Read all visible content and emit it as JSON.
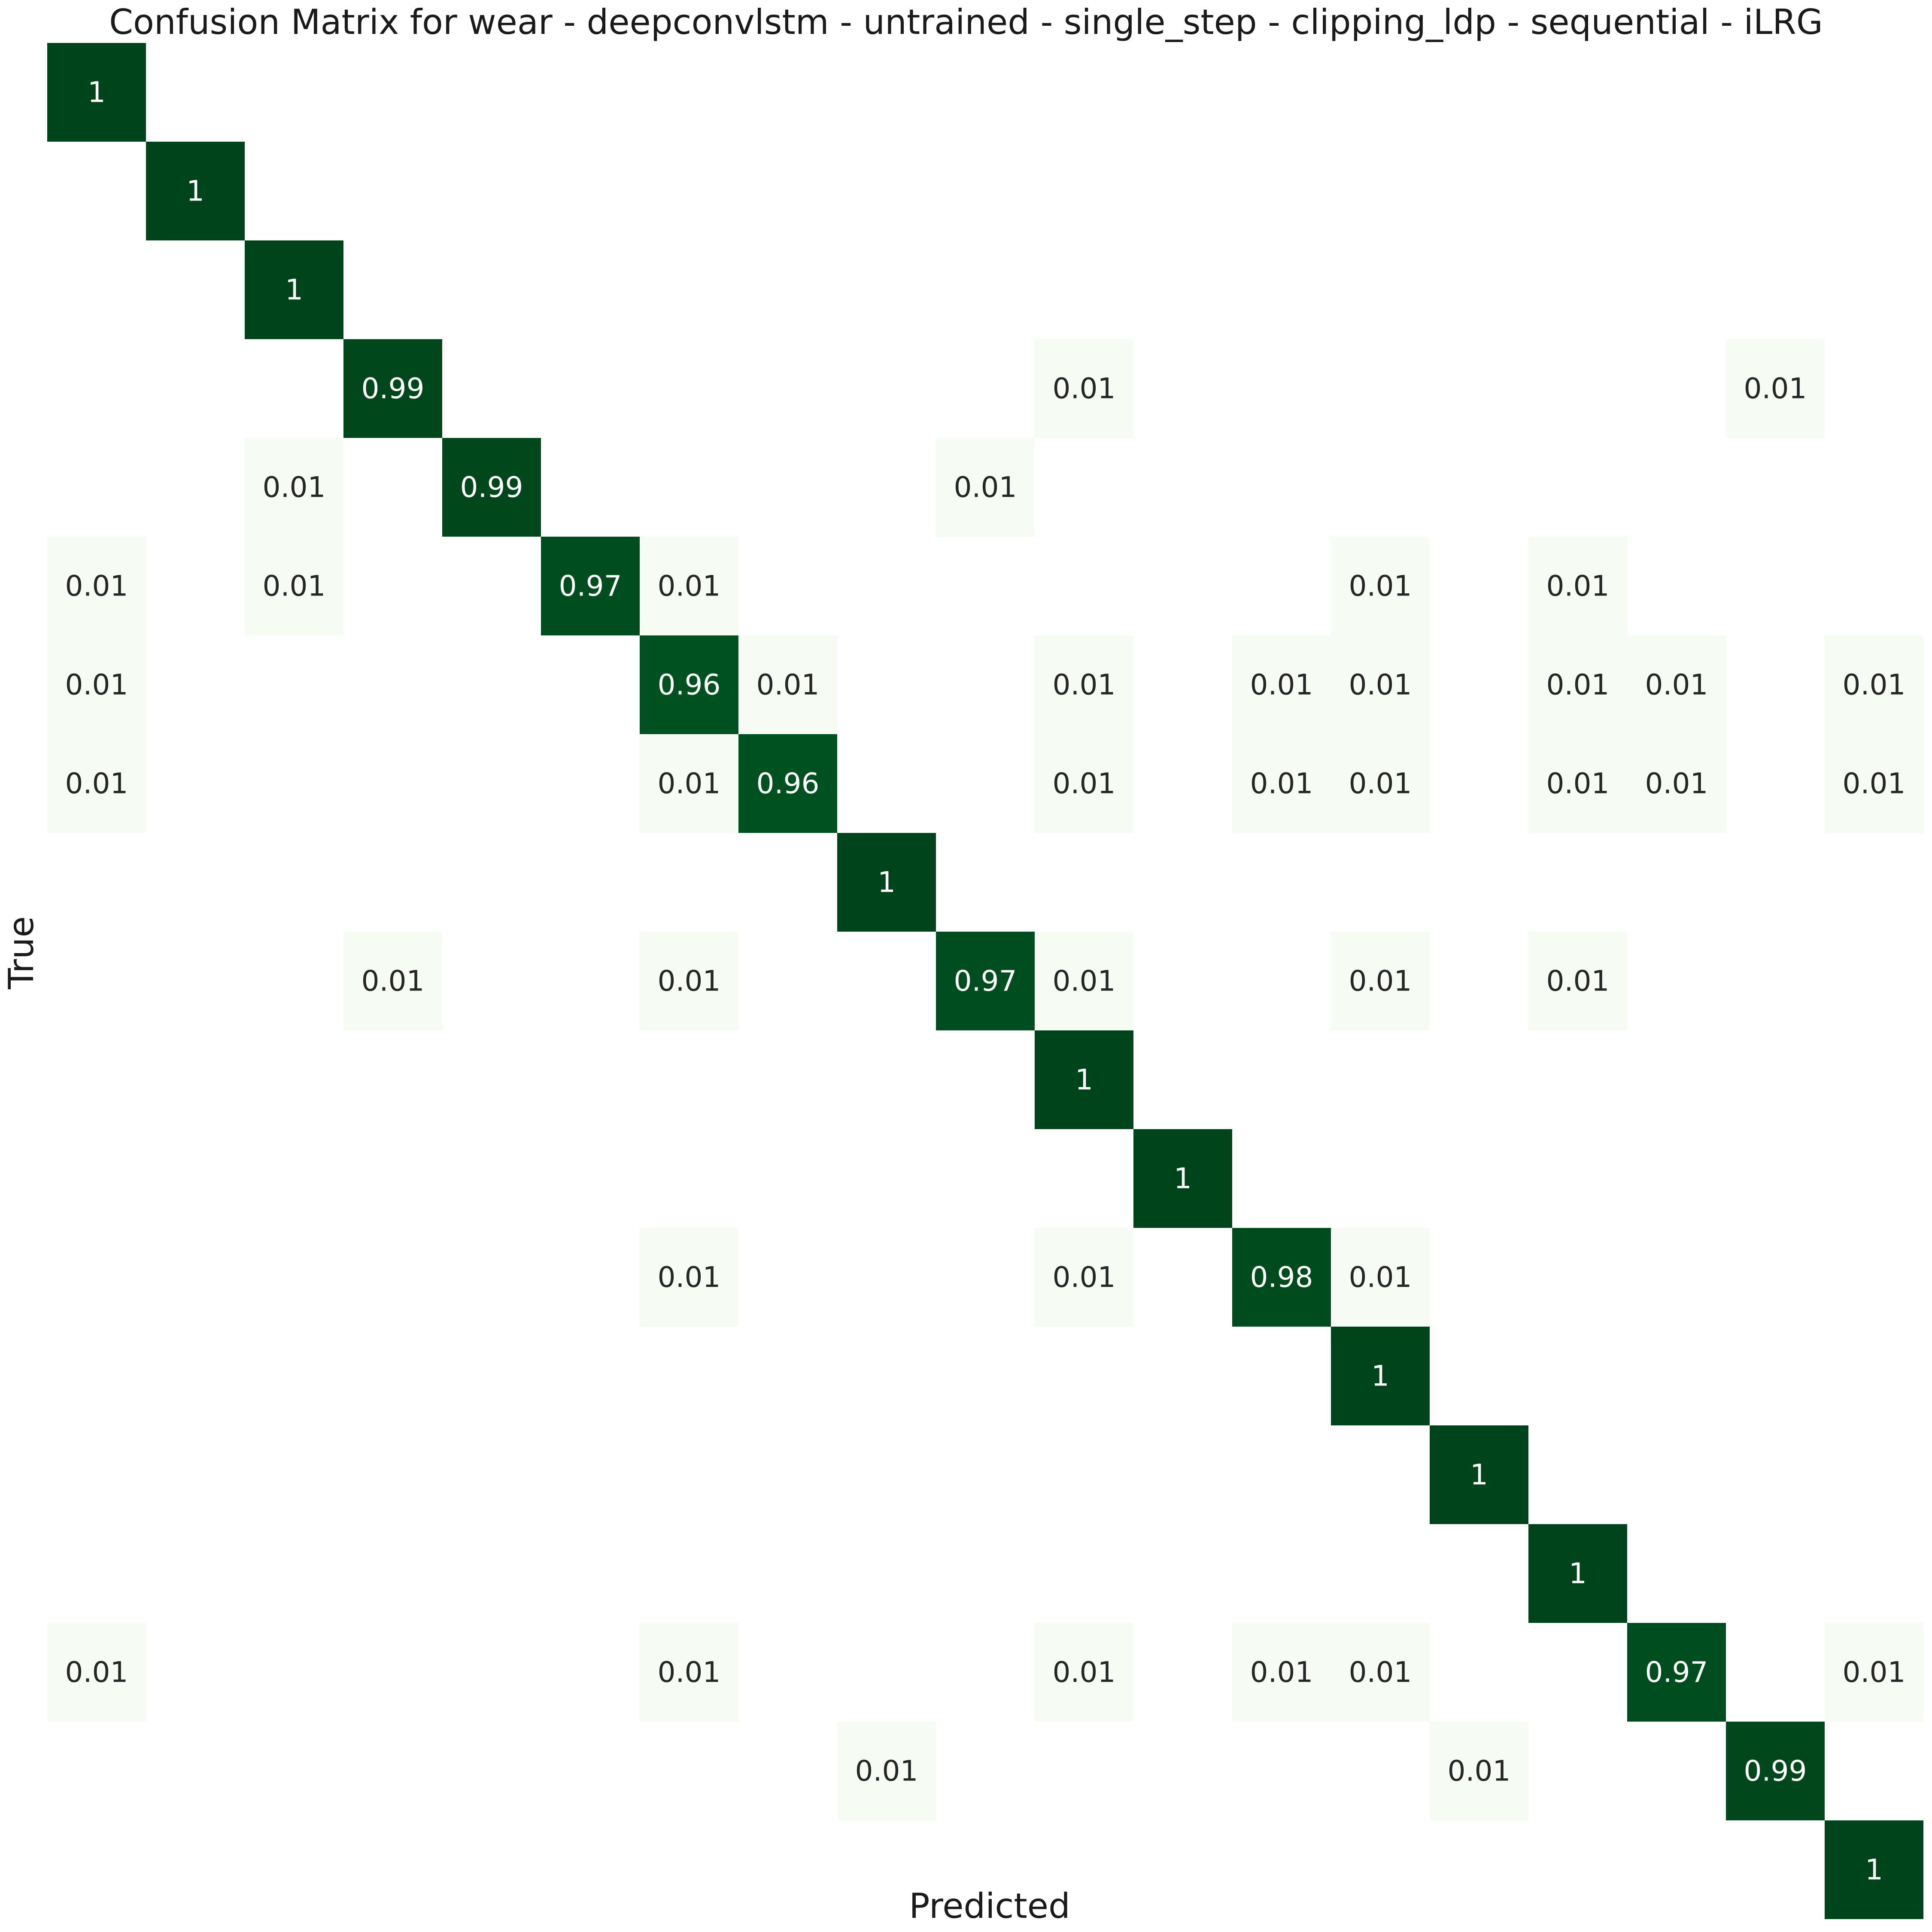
{
  "chart_data": {
    "type": "heatmap",
    "title": "Confusion Matrix for wear - deepconvlstm - untrained - single_step - clipping_ldp - sequential - iLRG",
    "xlabel": "Predicted",
    "ylabel": "True",
    "tick_labels_shown": false,
    "colorbar": false,
    "colormap": "Greens",
    "color_low": "#f7fcf5",
    "color_high": "#00441b",
    "value_range": [
      0,
      1
    ],
    "matrix": [
      [
        1,
        0,
        0,
        0,
        0,
        0,
        0,
        0,
        0,
        0,
        0,
        0,
        0,
        0,
        0,
        0,
        0,
        0,
        0
      ],
      [
        0,
        1,
        0,
        0,
        0,
        0,
        0,
        0,
        0,
        0,
        0,
        0,
        0,
        0,
        0,
        0,
        0,
        0,
        0
      ],
      [
        0,
        0,
        1,
        0,
        0,
        0,
        0,
        0,
        0,
        0,
        0,
        0,
        0,
        0,
        0,
        0,
        0,
        0,
        0
      ],
      [
        0,
        0,
        0,
        0.99,
        0,
        0,
        0,
        0,
        0,
        0,
        0.01,
        0,
        0,
        0,
        0,
        0,
        0,
        0.01,
        0
      ],
      [
        0,
        0,
        0.01,
        0,
        0.99,
        0,
        0,
        0,
        0,
        0.01,
        0,
        0,
        0,
        0,
        0,
        0,
        0,
        0,
        0
      ],
      [
        0.01,
        0,
        0.01,
        0,
        0,
        0.97,
        0.01,
        0,
        0,
        0,
        0,
        0,
        0,
        0.01,
        0,
        0.01,
        0,
        0,
        0
      ],
      [
        0.01,
        0,
        0,
        0,
        0,
        0,
        0.96,
        0.01,
        0,
        0,
        0.01,
        0,
        0.01,
        0.01,
        0,
        0.01,
        0.01,
        0,
        0.01
      ],
      [
        0.01,
        0,
        0,
        0,
        0,
        0,
        0.01,
        0.96,
        0,
        0,
        0.01,
        0,
        0.01,
        0.01,
        0,
        0.01,
        0.01,
        0,
        0.01
      ],
      [
        0,
        0,
        0,
        0,
        0,
        0,
        0,
        0,
        1,
        0,
        0,
        0,
        0,
        0,
        0,
        0,
        0,
        0,
        0
      ],
      [
        0,
        0,
        0,
        0.01,
        0,
        0,
        0.01,
        0,
        0,
        0.97,
        0.01,
        0,
        0,
        0.01,
        0,
        0.01,
        0,
        0,
        0
      ],
      [
        0,
        0,
        0,
        0,
        0,
        0,
        0,
        0,
        0,
        0,
        1,
        0,
        0,
        0,
        0,
        0,
        0,
        0,
        0
      ],
      [
        0,
        0,
        0,
        0,
        0,
        0,
        0,
        0,
        0,
        0,
        0,
        1,
        0,
        0,
        0,
        0,
        0,
        0,
        0
      ],
      [
        0,
        0,
        0,
        0,
        0,
        0,
        0.01,
        0,
        0,
        0,
        0.01,
        0,
        0.98,
        0.01,
        0,
        0,
        0,
        0,
        0
      ],
      [
        0,
        0,
        0,
        0,
        0,
        0,
        0,
        0,
        0,
        0,
        0,
        0,
        0,
        1,
        0,
        0,
        0,
        0,
        0
      ],
      [
        0,
        0,
        0,
        0,
        0,
        0,
        0,
        0,
        0,
        0,
        0,
        0,
        0,
        0,
        1,
        0,
        0,
        0,
        0
      ],
      [
        0,
        0,
        0,
        0,
        0,
        0,
        0,
        0,
        0,
        0,
        0,
        0,
        0,
        0,
        0,
        1,
        0,
        0,
        0
      ],
      [
        0.01,
        0,
        0,
        0,
        0,
        0,
        0.01,
        0,
        0,
        0,
        0.01,
        0,
        0.01,
        0.01,
        0,
        0,
        0.97,
        0,
        0.01
      ],
      [
        0,
        0,
        0,
        0,
        0,
        0,
        0,
        0,
        0.01,
        0,
        0,
        0,
        0,
        0,
        0.01,
        0,
        0,
        0.99,
        0
      ],
      [
        0,
        0,
        0,
        0,
        0,
        0,
        0,
        0,
        0,
        0,
        0,
        0,
        0,
        0,
        0,
        0,
        0,
        0,
        1
      ]
    ]
  }
}
